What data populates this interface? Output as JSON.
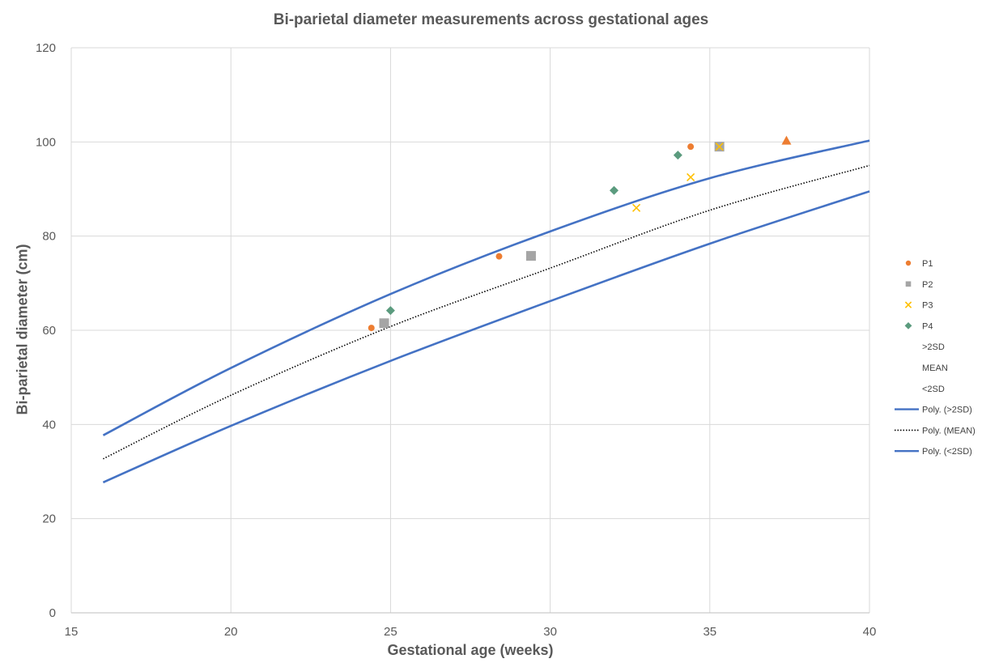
{
  "chart_data": {
    "type": "scatter",
    "title": "Bi-parietal diameter measurements across gestational ages",
    "xlabel": "Gestational age (weeks)",
    "ylabel": "Bi-parietal diameter (cm)",
    "xlim": [
      15,
      40
    ],
    "ylim": [
      0,
      120
    ],
    "xticks": [
      "15",
      "20",
      "25",
      "30",
      "35",
      "40"
    ],
    "yticks": [
      "0",
      "20",
      "40",
      "60",
      "80",
      "100",
      "120"
    ],
    "grid": true,
    "legend_position": "right",
    "series": [
      {
        "name": "P1",
        "marker": "circle",
        "color": "#ED7D31",
        "points": [
          [
            24.4,
            60.5
          ],
          [
            28.4,
            75.7
          ],
          [
            34.4,
            99.0
          ]
        ]
      },
      {
        "name": "P2",
        "marker": "square",
        "color": "#A5A5A5",
        "points": [
          [
            24.8,
            61.5
          ],
          [
            29.4,
            75.8
          ],
          [
            35.3,
            99.0
          ]
        ]
      },
      {
        "name": "P3",
        "marker": "x",
        "color": "#FFC000",
        "points": [
          [
            32.7,
            86.0
          ],
          [
            34.4,
            92.5
          ],
          [
            35.3,
            99.0
          ]
        ]
      },
      {
        "name": "P4",
        "marker": "diamond",
        "color": "#5B9B7E",
        "points": [
          [
            25.0,
            64.2
          ],
          [
            32.0,
            89.7
          ],
          [
            34.0,
            97.2
          ]
        ]
      },
      {
        "name": "",
        "marker": "triangle",
        "color": "#ED7D31",
        "points": [
          [
            37.4,
            100.3
          ]
        ]
      }
    ],
    "reference_labels": [
      ">2SD",
      "MEAN",
      "<2SD"
    ],
    "trendlines": [
      {
        "name": "Poly. (>2SD)",
        "style": "solid",
        "color": "#4472C4",
        "points": [
          [
            16,
            37.7
          ],
          [
            20,
            52.0
          ],
          [
            25,
            67.7
          ],
          [
            30,
            81.0
          ],
          [
            35,
            92.3
          ],
          [
            40,
            100.3
          ]
        ]
      },
      {
        "name": "Poly. (MEAN)",
        "style": "dotted",
        "color": "#000000",
        "points": [
          [
            16,
            32.7
          ],
          [
            20,
            46.2
          ],
          [
            25,
            60.8
          ],
          [
            30,
            73.2
          ],
          [
            35,
            85.5
          ],
          [
            40,
            95.0
          ]
        ]
      },
      {
        "name": "Poly. (<2SD)",
        "style": "solid",
        "color": "#4472C4",
        "points": [
          [
            16,
            27.7
          ],
          [
            20,
            39.7
          ],
          [
            25,
            53.5
          ],
          [
            30,
            66.2
          ],
          [
            35,
            78.4
          ],
          [
            40,
            89.5
          ]
        ]
      }
    ]
  }
}
